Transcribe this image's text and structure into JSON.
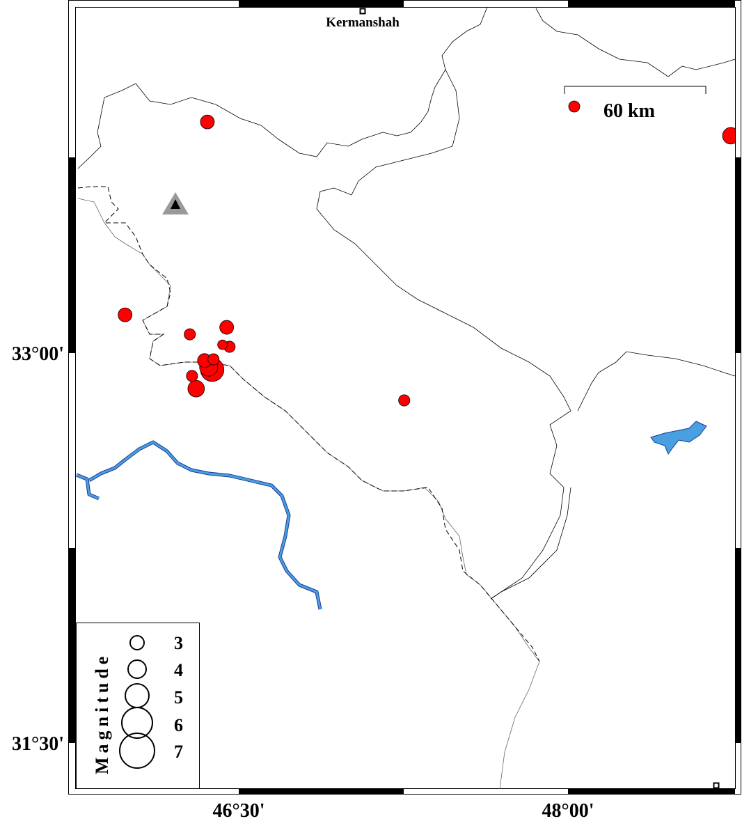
{
  "map": {
    "region": {
      "lon_min": 45.75,
      "lon_max": 48.75,
      "lat_min": 31.32,
      "lat_max": 34.34
    },
    "city": {
      "name": "Kermanshah",
      "lon": 47.07,
      "lat": 34.32
    },
    "station": {
      "symbol": "triangle",
      "lon": 46.21,
      "lat": 33.57,
      "color": "#999999"
    },
    "event_color": "#ff0000",
    "water_color": "#4a9fe0",
    "x_ticks": [
      {
        "value": 46.5,
        "label": "46°30'"
      },
      {
        "value": 48.0,
        "label": "48°00'"
      }
    ],
    "y_ticks": [
      {
        "value": 33.0,
        "label": "33°00'"
      },
      {
        "value": 31.5,
        "label": "31°30'"
      }
    ],
    "scale_bar": {
      "label": "60 km"
    },
    "legend": {
      "title": "Magnitude",
      "entries": [
        {
          "mag": 3,
          "label": "3"
        },
        {
          "mag": 4,
          "label": "4"
        },
        {
          "mag": 5,
          "label": "5"
        },
        {
          "mag": 6,
          "label": "6"
        },
        {
          "mag": 7,
          "label": "7"
        }
      ]
    },
    "events": [
      {
        "lon": 46.357,
        "lat": 33.889,
        "mag": 3.0
      },
      {
        "lon": 45.982,
        "lat": 33.147,
        "mag": 3.0
      },
      {
        "lon": 46.277,
        "lat": 33.072,
        "mag": 2.5
      },
      {
        "lon": 46.445,
        "lat": 33.099,
        "mag": 3.0
      },
      {
        "lon": 46.426,
        "lat": 33.032,
        "mag": 2.2
      },
      {
        "lon": 46.458,
        "lat": 33.024,
        "mag": 2.5
      },
      {
        "lon": 46.344,
        "lat": 32.971,
        "mag": 3.0
      },
      {
        "lon": 46.379,
        "lat": 32.936,
        "mag": 4.8
      },
      {
        "lon": 46.363,
        "lat": 32.946,
        "mag": 3.8
      },
      {
        "lon": 46.385,
        "lat": 32.976,
        "mag": 2.5
      },
      {
        "lon": 46.287,
        "lat": 32.912,
        "mag": 2.5
      },
      {
        "lon": 46.306,
        "lat": 32.863,
        "mag": 3.5
      },
      {
        "lon": 47.254,
        "lat": 32.818,
        "mag": 2.5
      },
      {
        "lon": 48.742,
        "lat": 33.836,
        "mag": 3.5
      }
    ]
  }
}
